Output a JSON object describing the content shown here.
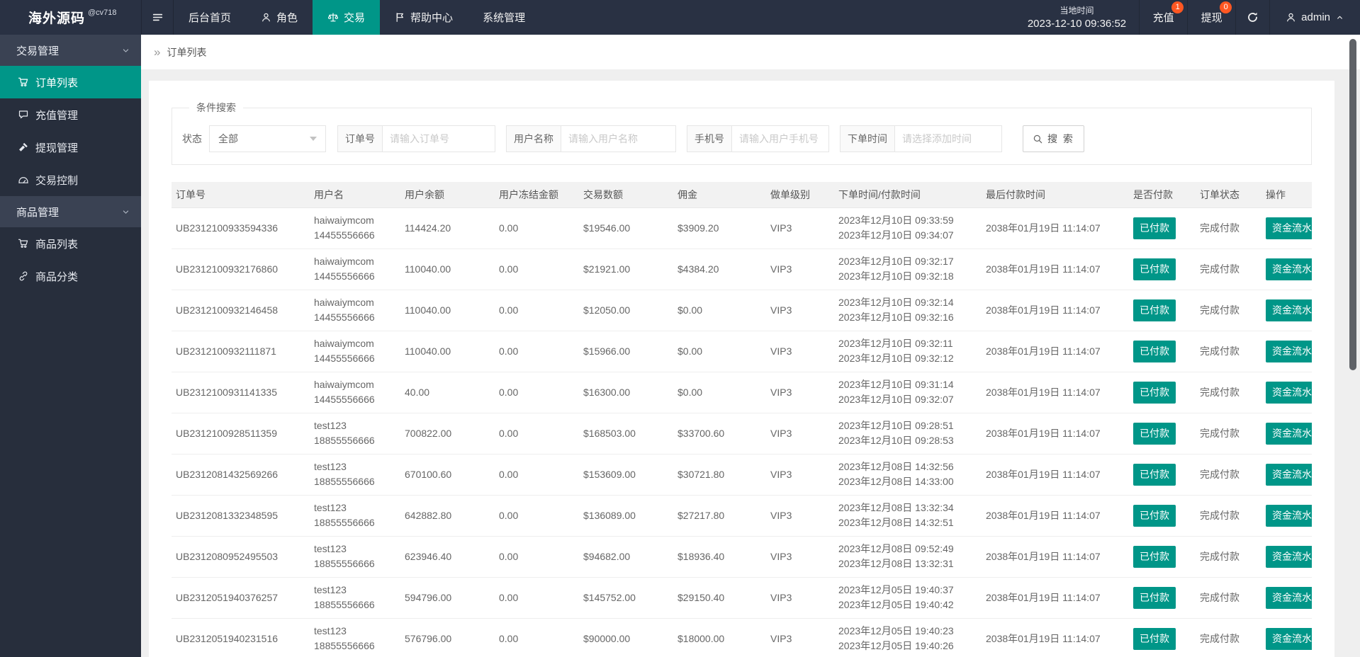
{
  "colors": {
    "accent": "#009688",
    "badge": "#ff5722"
  },
  "topbar": {
    "logo": "海外源码",
    "logo_sup": "@cv718",
    "menu": [
      {
        "label": "后台首页",
        "icon": null,
        "active": false
      },
      {
        "label": "角色",
        "icon": "user-icon",
        "active": false
      },
      {
        "label": "交易",
        "icon": "scales-icon",
        "active": true
      },
      {
        "label": "帮助中心",
        "icon": "flag-icon",
        "active": false
      },
      {
        "label": "系统管理",
        "icon": null,
        "active": false
      }
    ],
    "time_label": "当地时间",
    "time_value": "2023-12-10 09:36:52",
    "recharge": {
      "label": "充值",
      "badge": "1"
    },
    "withdraw": {
      "label": "提现",
      "badge": "0"
    },
    "user": "admin"
  },
  "sidebar": {
    "groups": [
      {
        "label": "交易管理",
        "items": [
          {
            "label": "订单列表",
            "icon": "cart-icon",
            "active": true
          },
          {
            "label": "充值管理",
            "icon": "comment-icon",
            "active": false
          },
          {
            "label": "提现管理",
            "icon": "hammer-icon",
            "active": false
          },
          {
            "label": "交易控制",
            "icon": "gauge-icon",
            "active": false
          }
        ]
      },
      {
        "label": "商品管理",
        "items": [
          {
            "label": "商品列表",
            "icon": "cart-icon",
            "active": false
          },
          {
            "label": "商品分类",
            "icon": "link-icon",
            "active": false
          }
        ]
      }
    ]
  },
  "breadcrumb": {
    "arrow": "»",
    "label": "订单列表"
  },
  "search": {
    "legend": "条件搜索",
    "status_label": "状态",
    "status_value": "全部",
    "fields": [
      {
        "label": "订单号",
        "placeholder": "请输入订单号"
      },
      {
        "label": "用户名称",
        "placeholder": "请输入用户名称"
      },
      {
        "label": "手机号",
        "placeholder": "请输入用户手机号"
      },
      {
        "label": "下单时间",
        "placeholder": "请选择添加时间"
      }
    ],
    "button": "搜 索"
  },
  "table": {
    "headers": [
      "订单号",
      "用户名",
      "用户余额",
      "用户冻结金额",
      "交易数额",
      "佣金",
      "做单级别",
      "下单时间/付款时间",
      "最后付款时间",
      "是否付款",
      "订单状态",
      "操作"
    ],
    "rows": [
      {
        "no": "UB2312100933594336",
        "user": "haiwaiymcom",
        "phone": "14455556666",
        "balance": "114424.20",
        "frozen": "0.00",
        "amount": "$19546.00",
        "commission": "$3909.20",
        "level": "VIP3",
        "time1": "2023年12月10日 09:33:59",
        "time2": "2023年12月10日 09:34:07",
        "last": "2038年01月19日 11:14:07",
        "paid": "已付款",
        "status": "完成付款",
        "action": "资金流水"
      },
      {
        "no": "UB2312100932176860",
        "user": "haiwaiymcom",
        "phone": "14455556666",
        "balance": "110040.00",
        "frozen": "0.00",
        "amount": "$21921.00",
        "commission": "$4384.20",
        "level": "VIP3",
        "time1": "2023年12月10日 09:32:17",
        "time2": "2023年12月10日 09:32:18",
        "last": "2038年01月19日 11:14:07",
        "paid": "已付款",
        "status": "完成付款",
        "action": "资金流水"
      },
      {
        "no": "UB2312100932146458",
        "user": "haiwaiymcom",
        "phone": "14455556666",
        "balance": "110040.00",
        "frozen": "0.00",
        "amount": "$12050.00",
        "commission": "$0.00",
        "level": "VIP3",
        "time1": "2023年12月10日 09:32:14",
        "time2": "2023年12月10日 09:32:16",
        "last": "2038年01月19日 11:14:07",
        "paid": "已付款",
        "status": "完成付款",
        "action": "资金流水"
      },
      {
        "no": "UB2312100932111871",
        "user": "haiwaiymcom",
        "phone": "14455556666",
        "balance": "110040.00",
        "frozen": "0.00",
        "amount": "$15966.00",
        "commission": "$0.00",
        "level": "VIP3",
        "time1": "2023年12月10日 09:32:11",
        "time2": "2023年12月10日 09:32:12",
        "last": "2038年01月19日 11:14:07",
        "paid": "已付款",
        "status": "完成付款",
        "action": "资金流水"
      },
      {
        "no": "UB2312100931141335",
        "user": "haiwaiymcom",
        "phone": "14455556666",
        "balance": "40.00",
        "frozen": "0.00",
        "amount": "$16300.00",
        "commission": "$0.00",
        "level": "VIP3",
        "time1": "2023年12月10日 09:31:14",
        "time2": "2023年12月10日 09:32:07",
        "last": "2038年01月19日 11:14:07",
        "paid": "已付款",
        "status": "完成付款",
        "action": "资金流水"
      },
      {
        "no": "UB2312100928511359",
        "user": "test123",
        "phone": "18855556666",
        "balance": "700822.00",
        "frozen": "0.00",
        "amount": "$168503.00",
        "commission": "$33700.60",
        "level": "VIP3",
        "time1": "2023年12月10日 09:28:51",
        "time2": "2023年12月10日 09:28:53",
        "last": "2038年01月19日 11:14:07",
        "paid": "已付款",
        "status": "完成付款",
        "action": "资金流水"
      },
      {
        "no": "UB2312081432569266",
        "user": "test123",
        "phone": "18855556666",
        "balance": "670100.60",
        "frozen": "0.00",
        "amount": "$153609.00",
        "commission": "$30721.80",
        "level": "VIP3",
        "time1": "2023年12月08日 14:32:56",
        "time2": "2023年12月08日 14:33:00",
        "last": "2038年01月19日 11:14:07",
        "paid": "已付款",
        "status": "完成付款",
        "action": "资金流水"
      },
      {
        "no": "UB2312081332348595",
        "user": "test123",
        "phone": "18855556666",
        "balance": "642882.80",
        "frozen": "0.00",
        "amount": "$136089.00",
        "commission": "$27217.80",
        "level": "VIP3",
        "time1": "2023年12月08日 13:32:34",
        "time2": "2023年12月08日 14:32:51",
        "last": "2038年01月19日 11:14:07",
        "paid": "已付款",
        "status": "完成付款",
        "action": "资金流水"
      },
      {
        "no": "UB2312080952495503",
        "user": "test123",
        "phone": "18855556666",
        "balance": "623946.40",
        "frozen": "0.00",
        "amount": "$94682.00",
        "commission": "$18936.40",
        "level": "VIP3",
        "time1": "2023年12月08日 09:52:49",
        "time2": "2023年12月08日 13:32:31",
        "last": "2038年01月19日 11:14:07",
        "paid": "已付款",
        "status": "完成付款",
        "action": "资金流水"
      },
      {
        "no": "UB2312051940376257",
        "user": "test123",
        "phone": "18855556666",
        "balance": "594796.00",
        "frozen": "0.00",
        "amount": "$145752.00",
        "commission": "$29150.40",
        "level": "VIP3",
        "time1": "2023年12月05日 19:40:37",
        "time2": "2023年12月05日 19:40:42",
        "last": "2038年01月19日 11:14:07",
        "paid": "已付款",
        "status": "完成付款",
        "action": "资金流水"
      },
      {
        "no": "UB2312051940231516",
        "user": "test123",
        "phone": "18855556666",
        "balance": "576796.00",
        "frozen": "0.00",
        "amount": "$90000.00",
        "commission": "$18000.00",
        "level": "VIP3",
        "time1": "2023年12月05日 19:40:23",
        "time2": "2023年12月05日 19:40:26",
        "last": "2038年01月19日 11:14:07",
        "paid": "已付款",
        "status": "完成付款",
        "action": "资金流水"
      }
    ]
  }
}
